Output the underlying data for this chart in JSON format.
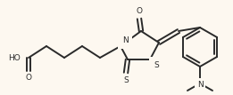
{
  "bg_color": "#fdf8f0",
  "line_color": "#2a2a2a",
  "line_width": 1.4,
  "figsize": [
    2.61,
    1.07
  ],
  "dpi": 100,
  "xlim": [
    0,
    261
  ],
  "ylim": [
    0,
    107
  ]
}
